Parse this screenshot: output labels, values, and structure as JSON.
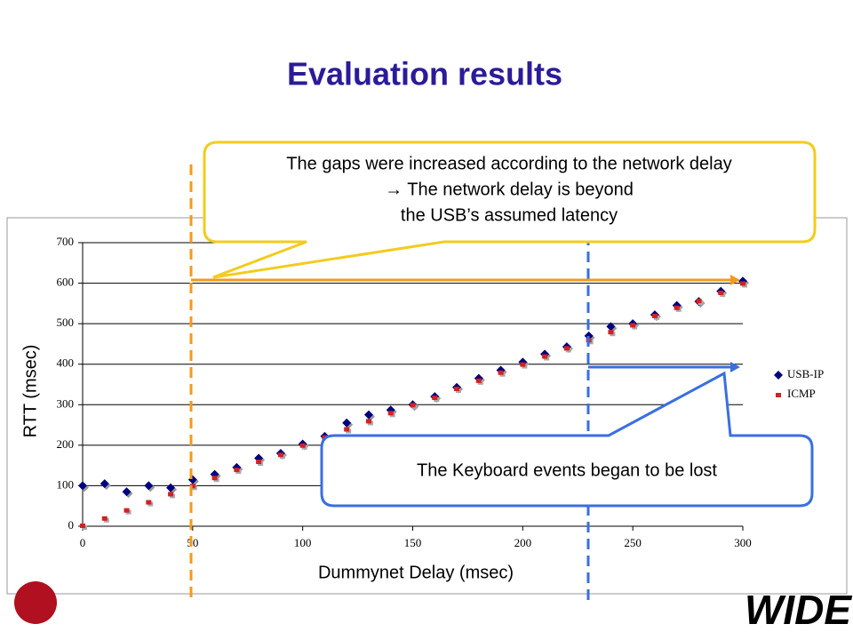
{
  "title": "Evaluation results",
  "logo": "WIDE",
  "chart_data": {
    "type": "scatter",
    "x_label": "Dummynet Delay (msec)",
    "y_label": "RTT (msec)",
    "x": [
      0,
      10,
      20,
      30,
      40,
      50,
      60,
      70,
      80,
      90,
      100,
      110,
      120,
      130,
      140,
      150,
      160,
      170,
      180,
      190,
      200,
      210,
      220,
      230,
      240,
      250,
      260,
      270,
      280,
      290,
      300
    ],
    "series": [
      {
        "name": "USB-IP",
        "color": "#00007f",
        "values": [
          100,
          105,
          85,
          100,
          95,
          115,
          128,
          145,
          168,
          180,
          203,
          222,
          255,
          275,
          287,
          300,
          320,
          343,
          365,
          385,
          405,
          425,
          443,
          470,
          493,
          500,
          522,
          545,
          555,
          580,
          605
        ]
      },
      {
        "name": "ICMP",
        "color": "#d42020",
        "values": [
          0,
          18,
          38,
          58,
          78,
          98,
          118,
          138,
          158,
          175,
          198,
          218,
          238,
          258,
          278,
          298,
          316,
          338,
          358,
          378,
          398,
          418,
          438,
          458,
          478,
          495,
          518,
          538,
          555,
          575,
          598
        ]
      }
    ],
    "xlim": [
      0,
      300
    ],
    "xticks": [
      0,
      50,
      100,
      150,
      200,
      250,
      300
    ],
    "ylim": [
      0,
      700
    ],
    "yticks": [
      0,
      100,
      200,
      300,
      400,
      500,
      600,
      700
    ],
    "grid": true,
    "annotations": [
      {
        "lines": [
          "The gaps were increased according to the network delay",
          "→ The network delay is beyond",
          "the USB’s assumed latency"
        ]
      },
      {
        "lines": [
          "The Keyboard events began to be lost"
        ]
      }
    ]
  }
}
